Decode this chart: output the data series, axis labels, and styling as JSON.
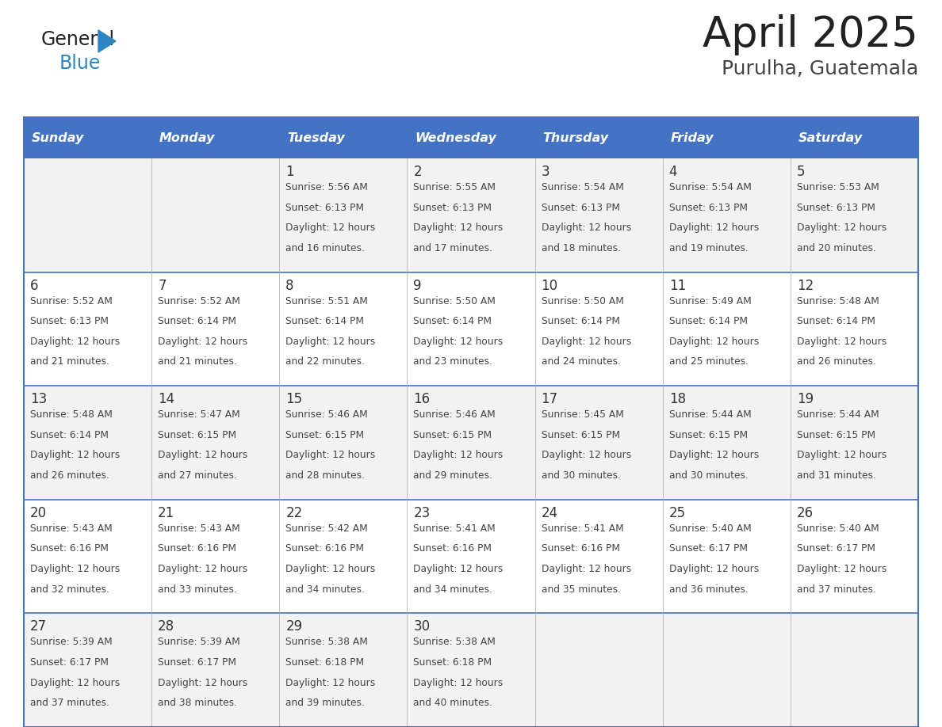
{
  "title": "April 2025",
  "subtitle": "Purulha, Guatemala",
  "header_bg": "#4472C4",
  "header_text_color": "#FFFFFF",
  "cell_bg_even": "#F2F2F2",
  "cell_bg_odd": "#FFFFFF",
  "border_color": "#4472C4",
  "grid_color": "#AAAAAA",
  "day_names": [
    "Sunday",
    "Monday",
    "Tuesday",
    "Wednesday",
    "Thursday",
    "Friday",
    "Saturday"
  ],
  "title_color": "#222222",
  "subtitle_color": "#444444",
  "number_color": "#333333",
  "info_color": "#444444",
  "logo_text_color": "#222222",
  "logo_blue_color": "#2E86C1",
  "days": [
    {
      "day": 0,
      "week": 0,
      "date": "",
      "sunrise": "",
      "sunset": "",
      "daylight_min": ""
    },
    {
      "day": 1,
      "week": 0,
      "date": "",
      "sunrise": "",
      "sunset": "",
      "daylight_min": ""
    },
    {
      "day": 2,
      "week": 0,
      "date": "1",
      "sunrise": "5:56 AM",
      "sunset": "6:13 PM",
      "daylight_min": "16 minutes."
    },
    {
      "day": 3,
      "week": 0,
      "date": "2",
      "sunrise": "5:55 AM",
      "sunset": "6:13 PM",
      "daylight_min": "17 minutes."
    },
    {
      "day": 4,
      "week": 0,
      "date": "3",
      "sunrise": "5:54 AM",
      "sunset": "6:13 PM",
      "daylight_min": "18 minutes."
    },
    {
      "day": 5,
      "week": 0,
      "date": "4",
      "sunrise": "5:54 AM",
      "sunset": "6:13 PM",
      "daylight_min": "19 minutes."
    },
    {
      "day": 6,
      "week": 0,
      "date": "5",
      "sunrise": "5:53 AM",
      "sunset": "6:13 PM",
      "daylight_min": "20 minutes."
    },
    {
      "day": 0,
      "week": 1,
      "date": "6",
      "sunrise": "5:52 AM",
      "sunset": "6:13 PM",
      "daylight_min": "21 minutes."
    },
    {
      "day": 1,
      "week": 1,
      "date": "7",
      "sunrise": "5:52 AM",
      "sunset": "6:14 PM",
      "daylight_min": "21 minutes."
    },
    {
      "day": 2,
      "week": 1,
      "date": "8",
      "sunrise": "5:51 AM",
      "sunset": "6:14 PM",
      "daylight_min": "22 minutes."
    },
    {
      "day": 3,
      "week": 1,
      "date": "9",
      "sunrise": "5:50 AM",
      "sunset": "6:14 PM",
      "daylight_min": "23 minutes."
    },
    {
      "day": 4,
      "week": 1,
      "date": "10",
      "sunrise": "5:50 AM",
      "sunset": "6:14 PM",
      "daylight_min": "24 minutes."
    },
    {
      "day": 5,
      "week": 1,
      "date": "11",
      "sunrise": "5:49 AM",
      "sunset": "6:14 PM",
      "daylight_min": "25 minutes."
    },
    {
      "day": 6,
      "week": 1,
      "date": "12",
      "sunrise": "5:48 AM",
      "sunset": "6:14 PM",
      "daylight_min": "26 minutes."
    },
    {
      "day": 0,
      "week": 2,
      "date": "13",
      "sunrise": "5:48 AM",
      "sunset": "6:14 PM",
      "daylight_min": "26 minutes."
    },
    {
      "day": 1,
      "week": 2,
      "date": "14",
      "sunrise": "5:47 AM",
      "sunset": "6:15 PM",
      "daylight_min": "27 minutes."
    },
    {
      "day": 2,
      "week": 2,
      "date": "15",
      "sunrise": "5:46 AM",
      "sunset": "6:15 PM",
      "daylight_min": "28 minutes."
    },
    {
      "day": 3,
      "week": 2,
      "date": "16",
      "sunrise": "5:46 AM",
      "sunset": "6:15 PM",
      "daylight_min": "29 minutes."
    },
    {
      "day": 4,
      "week": 2,
      "date": "17",
      "sunrise": "5:45 AM",
      "sunset": "6:15 PM",
      "daylight_min": "30 minutes."
    },
    {
      "day": 5,
      "week": 2,
      "date": "18",
      "sunrise": "5:44 AM",
      "sunset": "6:15 PM",
      "daylight_min": "30 minutes."
    },
    {
      "day": 6,
      "week": 2,
      "date": "19",
      "sunrise": "5:44 AM",
      "sunset": "6:15 PM",
      "daylight_min": "31 minutes."
    },
    {
      "day": 0,
      "week": 3,
      "date": "20",
      "sunrise": "5:43 AM",
      "sunset": "6:16 PM",
      "daylight_min": "32 minutes."
    },
    {
      "day": 1,
      "week": 3,
      "date": "21",
      "sunrise": "5:43 AM",
      "sunset": "6:16 PM",
      "daylight_min": "33 minutes."
    },
    {
      "day": 2,
      "week": 3,
      "date": "22",
      "sunrise": "5:42 AM",
      "sunset": "6:16 PM",
      "daylight_min": "34 minutes."
    },
    {
      "day": 3,
      "week": 3,
      "date": "23",
      "sunrise": "5:41 AM",
      "sunset": "6:16 PM",
      "daylight_min": "34 minutes."
    },
    {
      "day": 4,
      "week": 3,
      "date": "24",
      "sunrise": "5:41 AM",
      "sunset": "6:16 PM",
      "daylight_min": "35 minutes."
    },
    {
      "day": 5,
      "week": 3,
      "date": "25",
      "sunrise": "5:40 AM",
      "sunset": "6:17 PM",
      "daylight_min": "36 minutes."
    },
    {
      "day": 6,
      "week": 3,
      "date": "26",
      "sunrise": "5:40 AM",
      "sunset": "6:17 PM",
      "daylight_min": "37 minutes."
    },
    {
      "day": 0,
      "week": 4,
      "date": "27",
      "sunrise": "5:39 AM",
      "sunset": "6:17 PM",
      "daylight_min": "37 minutes."
    },
    {
      "day": 1,
      "week": 4,
      "date": "28",
      "sunrise": "5:39 AM",
      "sunset": "6:17 PM",
      "daylight_min": "38 minutes."
    },
    {
      "day": 2,
      "week": 4,
      "date": "29",
      "sunrise": "5:38 AM",
      "sunset": "6:18 PM",
      "daylight_min": "39 minutes."
    },
    {
      "day": 3,
      "week": 4,
      "date": "30",
      "sunrise": "5:38 AM",
      "sunset": "6:18 PM",
      "daylight_min": "40 minutes."
    },
    {
      "day": 4,
      "week": 4,
      "date": "",
      "sunrise": "",
      "sunset": "",
      "daylight_min": ""
    },
    {
      "day": 5,
      "week": 4,
      "date": "",
      "sunrise": "",
      "sunset": "",
      "daylight_min": ""
    },
    {
      "day": 6,
      "week": 4,
      "date": "",
      "sunrise": "",
      "sunset": "",
      "daylight_min": ""
    }
  ]
}
